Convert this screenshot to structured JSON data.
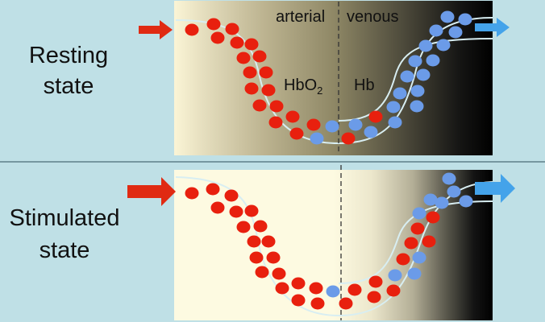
{
  "resting": {
    "label_line1": "Resting",
    "label_line2": "state",
    "arterial_label": "arterial",
    "venous_label": "venous",
    "hbo2_label": "HbO",
    "hbo2_subscript": "2",
    "hb_label": "Hb"
  },
  "stimulated": {
    "label_line1": "Stimulated",
    "label_line2": "state"
  },
  "colors": {
    "background": "#bfe0e6",
    "oxygenated_cell": "#e8200e",
    "deoxygenated_cell": "#6b9be8",
    "inflow_arrow": "#e02a12",
    "outflow_arrow": "#44a3ea",
    "vessel_wall": "#d8eef2"
  }
}
